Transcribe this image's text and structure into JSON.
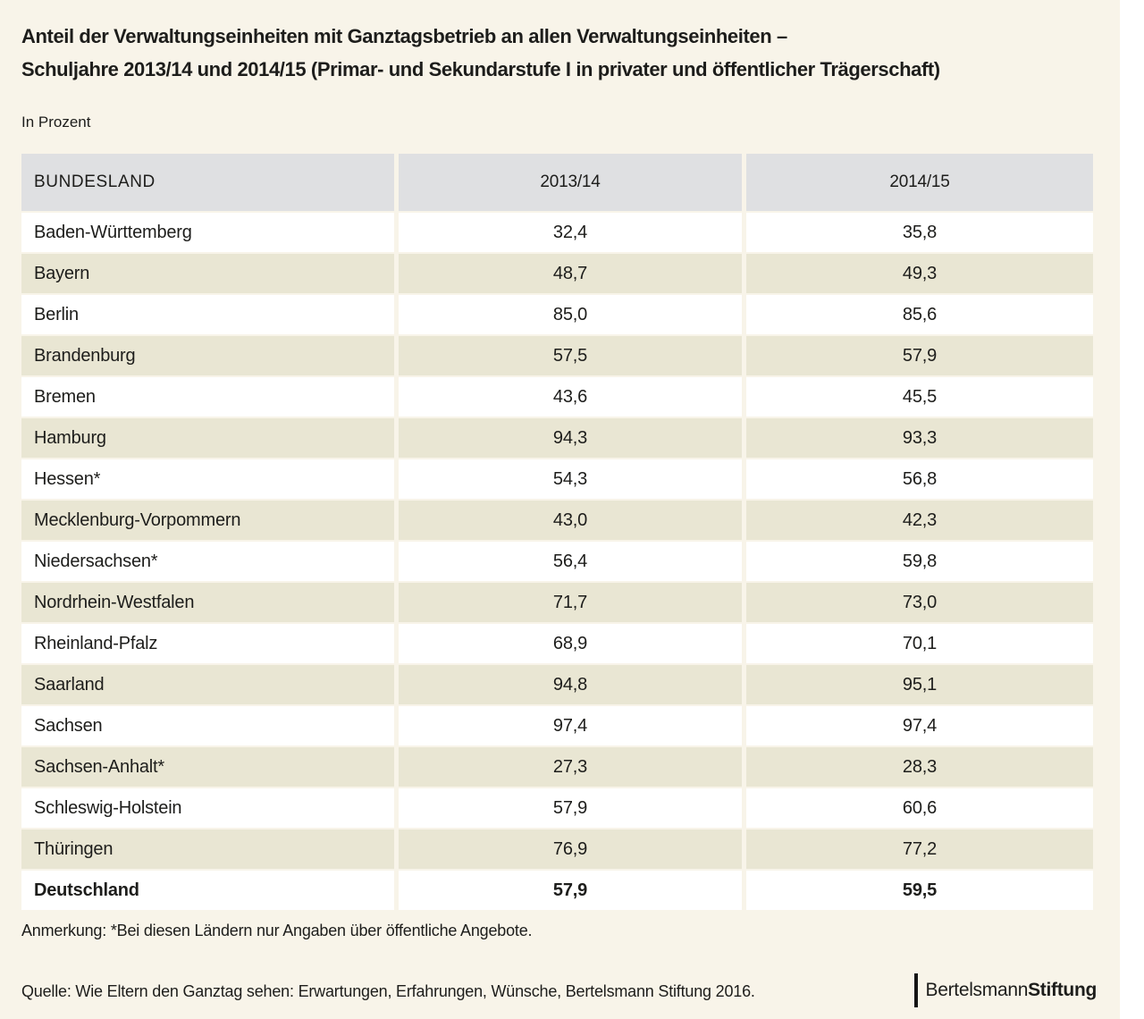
{
  "page": {
    "title_line1": "Anteil der Verwaltungseinheiten mit Ganztagsbetrieb an allen Verwaltungseinheiten –",
    "title_line2": "Schuljahre 2013/14 und 2014/15 (Primar- und Sekundarstufe I in privater und öffentlicher Trägerschaft)",
    "unit_label": "In Prozent",
    "note": "Anmerkung: *Bei diesen Ländern nur Angaben über öffentliche Angebote.",
    "source": "Quelle: Wie Eltern den Ganztag sehen: Erwartungen, Erfahrungen, Wünsche, Bertelsmann Stiftung 2016.",
    "logo": {
      "brand_regular": "Bertelsmann",
      "brand_bold": "Stiftung"
    }
  },
  "colors": {
    "page_bg": "#f8f4e9",
    "header_bg": "#dfe0e2",
    "row_white": "#ffffff",
    "row_beige": "#e9e6d3",
    "text": "#1d1d1b"
  },
  "chart_data": {
    "type": "table",
    "title": "Anteil der Verwaltungseinheiten mit Ganztagsbetrieb an allen Verwaltungseinheiten – Schuljahre 2013/14 und 2014/15 (Primar- und Sekundarstufe I in privater und öffentlicher Trägerschaft)",
    "unit": "In Prozent",
    "columns": [
      "BUNDESLAND",
      "2013/14",
      "2014/15"
    ],
    "rows": [
      {
        "name": "Baden-Württemberg",
        "values": [
          "32,4",
          "35,8"
        ],
        "bold": false
      },
      {
        "name": "Bayern",
        "values": [
          "48,7",
          "49,3"
        ],
        "bold": false
      },
      {
        "name": "Berlin",
        "values": [
          "85,0",
          "85,6"
        ],
        "bold": false
      },
      {
        "name": "Brandenburg",
        "values": [
          "57,5",
          "57,9"
        ],
        "bold": false
      },
      {
        "name": "Bremen",
        "values": [
          "43,6",
          "45,5"
        ],
        "bold": false
      },
      {
        "name": "Hamburg",
        "values": [
          "94,3",
          "93,3"
        ],
        "bold": false
      },
      {
        "name": "Hessen*",
        "values": [
          "54,3",
          "56,8"
        ],
        "bold": false
      },
      {
        "name": "Mecklenburg-Vorpommern",
        "values": [
          "43,0",
          "42,3"
        ],
        "bold": false
      },
      {
        "name": "Niedersachsen*",
        "values": [
          "56,4",
          "59,8"
        ],
        "bold": false
      },
      {
        "name": "Nordrhein-Westfalen",
        "values": [
          "71,7",
          "73,0"
        ],
        "bold": false
      },
      {
        "name": "Rheinland-Pfalz",
        "values": [
          "68,9",
          "70,1"
        ],
        "bold": false
      },
      {
        "name": "Saarland",
        "values": [
          "94,8",
          "95,1"
        ],
        "bold": false
      },
      {
        "name": "Sachsen",
        "values": [
          "97,4",
          "97,4"
        ],
        "bold": false
      },
      {
        "name": "Sachsen-Anhalt*",
        "values": [
          "27,3",
          "28,3"
        ],
        "bold": false
      },
      {
        "name": "Schleswig-Holstein",
        "values": [
          "57,9",
          "60,6"
        ],
        "bold": false
      },
      {
        "name": "Thüringen",
        "values": [
          "76,9",
          "77,2"
        ],
        "bold": false
      },
      {
        "name": "Deutschland",
        "values": [
          "57,9",
          "59,5"
        ],
        "bold": true
      }
    ],
    "footnote": "Anmerkung: *Bei diesen Ländern nur Angaben über öffentliche Angebote.",
    "source": "Quelle: Wie Eltern den Ganztag sehen: Erwartungen, Erfahrungen, Wünsche, Bertelsmann Stiftung 2016."
  }
}
